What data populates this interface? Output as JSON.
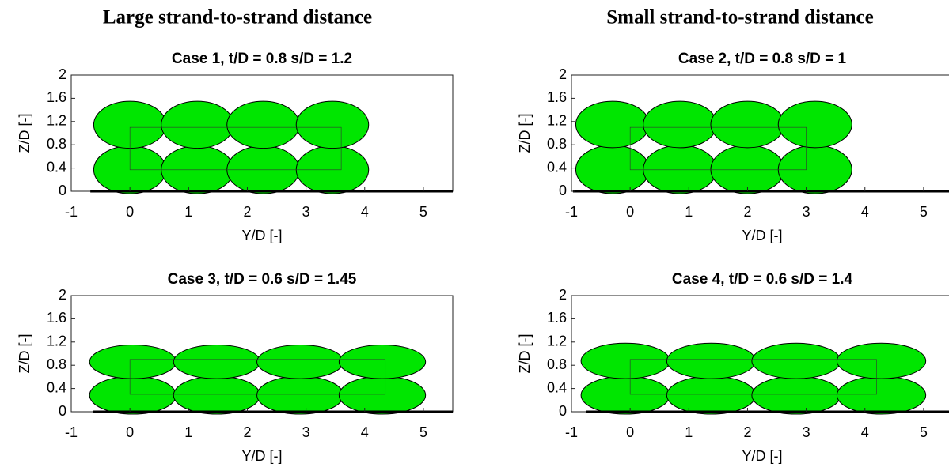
{
  "headers": [
    "Large strand-to-strand distance",
    "Small strand-to-strand distance"
  ],
  "chart_data": [
    {
      "type": "strands",
      "title": "Case 1, t/D = 0.8 s/D = 1.2",
      "xlabel": "Y/D [-]",
      "ylabel": "Z/D [-]",
      "xlim": [
        -1,
        5.5
      ],
      "ylim": [
        0,
        2
      ],
      "xticks": [
        -1,
        0,
        1,
        2,
        3,
        4,
        5
      ],
      "yticks": [
        0,
        0.4,
        0.8,
        1.2,
        1.6,
        2
      ]
    },
    {
      "type": "strands",
      "title": "Case 2, t/D = 0.8 s/D = 1",
      "xlabel": "Y/D [-]",
      "ylabel": "Z/D [-]",
      "xlim": [
        -1,
        5.5
      ],
      "ylim": [
        0,
        2
      ],
      "xticks": [
        -1,
        0,
        1,
        2,
        3,
        4,
        5
      ],
      "yticks": [
        0,
        0.4,
        0.8,
        1.2,
        1.6,
        2
      ]
    },
    {
      "type": "strands",
      "title": "Case 3, t/D = 0.6 s/D = 1.45",
      "xlabel": "Y/D [-]",
      "ylabel": "Z/D [-]",
      "xlim": [
        -1,
        5.5
      ],
      "ylim": [
        0,
        2
      ],
      "xticks": [
        -1,
        0,
        1,
        2,
        3,
        4,
        5
      ],
      "yticks": [
        0,
        0.4,
        0.8,
        1.2,
        1.6,
        2
      ]
    },
    {
      "type": "strands",
      "title": "Case 4, t/D = 0.6 s/D = 1.4",
      "xlabel": "Y/D [-]",
      "ylabel": "Z/D [-]",
      "xlim": [
        -1,
        5.5
      ],
      "ylim": [
        0,
        2
      ],
      "xticks": [
        -1,
        0,
        1,
        2,
        3,
        4,
        5
      ],
      "yticks": [
        0,
        0.4,
        0.8,
        1.2,
        1.6,
        2
      ]
    }
  ]
}
